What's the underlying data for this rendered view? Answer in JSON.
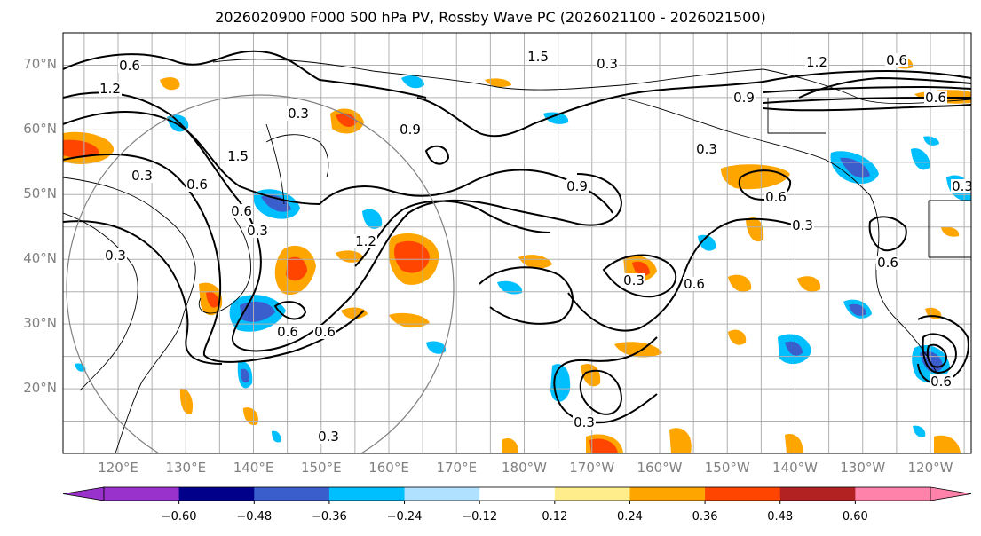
{
  "title": "2026020900 F000 500 hPa PV, Rossby Wave PC (2026021100 - 2026021500)",
  "map": {
    "lat_labels": [
      {
        "label": "70°N",
        "lat": 70
      },
      {
        "label": "60°N",
        "lat": 60
      },
      {
        "label": "50°N",
        "lat": 50
      },
      {
        "label": "40°N",
        "lat": 40
      },
      {
        "label": "30°N",
        "lat": 30
      },
      {
        "label": "20°N",
        "lat": 20
      }
    ],
    "lon_labels": [
      "120°E",
      "130°E",
      "140°E",
      "150°E",
      "160°E",
      "170°E",
      "180°W",
      "170°W",
      "160°W",
      "150°W",
      "140°W",
      "130°W",
      "120°W"
    ],
    "contour_labels": [
      "0.6",
      "1.2",
      "1.5",
      "0.3",
      "0.9",
      "0.6",
      "0.3",
      "0.9",
      "1.2",
      "0.6",
      "0.3",
      "1.5",
      "0.9",
      "0.3",
      "0.6",
      "0.3",
      "0.3",
      "0.6",
      "0.3",
      "0.6",
      "0.6",
      "0.6",
      "0.3",
      "0.3",
      "0.6",
      "0.3",
      "0.6",
      "0.6",
      "1.2",
      "0.3"
    ]
  },
  "colorbar": {
    "ticks": [
      "−0.60",
      "−0.48",
      "−0.36",
      "−0.24",
      "−0.12",
      "0.12",
      "0.24",
      "0.36",
      "0.48",
      "0.60"
    ],
    "colors": [
      "#9932cc",
      "#00008b",
      "#3a5fcd",
      "#00bfff",
      "#b0e2ff",
      "#ffffff",
      "#ffec8b",
      "#ffa500",
      "#ff4500",
      "#b22222",
      "#ff82ab"
    ]
  }
}
